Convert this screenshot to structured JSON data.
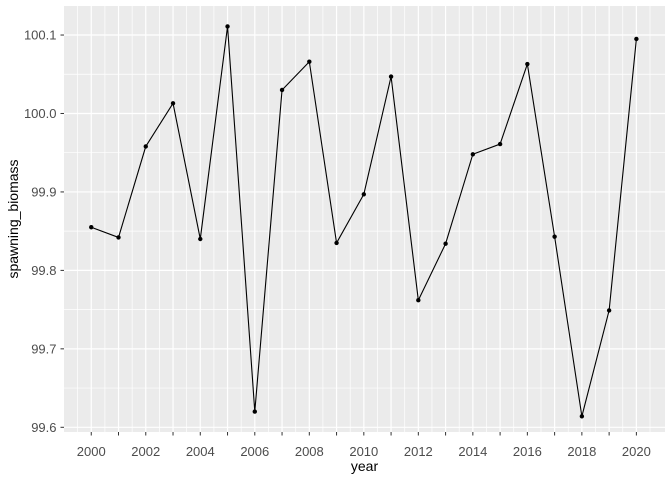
{
  "chart_data": {
    "type": "line",
    "title": "",
    "xlabel": "year",
    "ylabel": "spawning_biomass",
    "x": [
      2000,
      2001,
      2002,
      2003,
      2004,
      2005,
      2006,
      2007,
      2008,
      2009,
      2010,
      2011,
      2012,
      2013,
      2014,
      2015,
      2016,
      2017,
      2018,
      2019,
      2020
    ],
    "y": [
      99.855,
      99.842,
      99.958,
      100.013,
      99.84,
      100.111,
      99.62,
      100.03,
      100.066,
      99.835,
      99.897,
      100.047,
      99.762,
      99.834,
      99.948,
      99.961,
      100.063,
      99.843,
      99.614,
      99.749,
      100.095
    ],
    "x_tick_positions": [
      2000,
      2001,
      2002,
      2003,
      2004,
      2005,
      2006,
      2007,
      2008,
      2009,
      2010,
      2011,
      2012,
      2013,
      2014,
      2015,
      2016,
      2017,
      2018,
      2019,
      2020
    ],
    "x_labeled_ticks": [
      2000,
      2002,
      2004,
      2006,
      2008,
      2010,
      2012,
      2014,
      2016,
      2018,
      2020
    ],
    "y_major_ticks": [
      99.6,
      99.7,
      99.8,
      99.9,
      100.0,
      100.1
    ],
    "y_tick_labels": [
      "99.6",
      "99.7",
      "99.8",
      "99.9",
      "100.0",
      "100.1"
    ],
    "xlim": [
      1999.0,
      2021.05
    ],
    "ylim": [
      99.594,
      100.137
    ],
    "grid": "white major and minor gridlines on grey panel, minor at half-steps",
    "legend": "none",
    "marker": "filled circle on every point, straight line segments between points"
  },
  "style": {
    "figure_bg": "#FFFFFF",
    "panel_bg": "#EBEBEB",
    "grid_color": "#FFFFFF",
    "line_color": "#000000",
    "point_color": "#000000",
    "axis_text_color": "#4D4D4D",
    "axis_title_color": "#000000",
    "tick_mark_color": "#333333"
  }
}
